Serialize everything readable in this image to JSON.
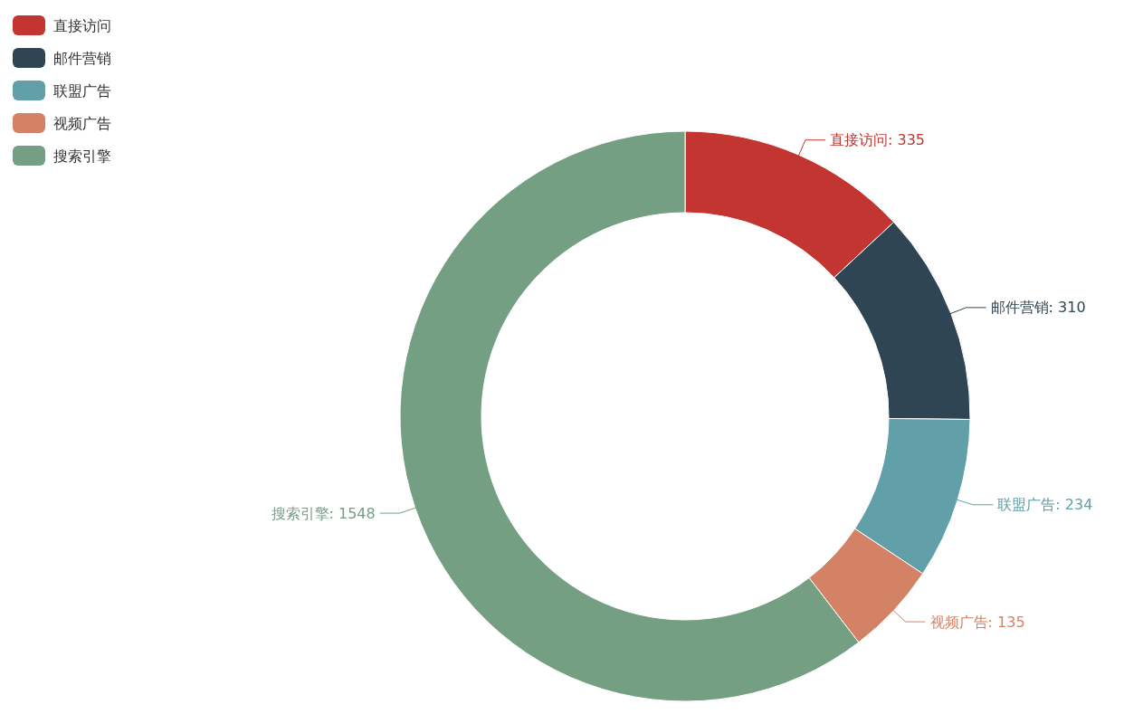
{
  "chart_data": {
    "type": "donut",
    "categories": [
      "直接访问",
      "邮件营销",
      "联盟广告",
      "视频广告",
      "搜索引擎"
    ],
    "values": [
      335,
      310,
      234,
      135,
      1548
    ],
    "colors": [
      "#c23531",
      "#2f4554",
      "#61a0a8",
      "#d48265",
      "#749f83"
    ],
    "value_labels": [
      "直接访问: 335",
      "邮件营销: 310",
      "联盟广告: 234",
      "视频广告: 135",
      "搜索引擎: 1548"
    ],
    "legend": "top left"
  }
}
